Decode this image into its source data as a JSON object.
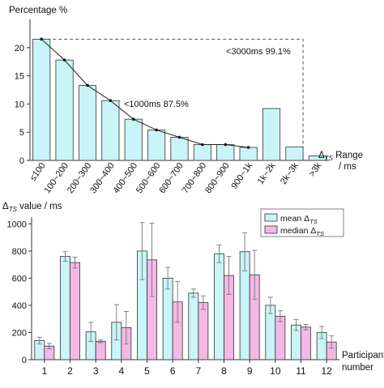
{
  "chart_data": [
    {
      "type": "bar",
      "ylabel": "Percentage %",
      "xlabel": "ΔTS Range / ms",
      "xlabel_parts": {
        "symbol": "Δ",
        "subscript": "TS",
        "rest": " Range",
        "unit": "/ ms"
      },
      "ylim": [
        0,
        25
      ],
      "yticks": [
        0,
        5,
        10,
        15,
        20
      ],
      "grid": false,
      "categories": [
        "≤100",
        "100~200",
        "200~300",
        "300~400",
        "400~500",
        "500~600",
        "600~700",
        "700~800",
        "800~900",
        "900~1k",
        "1k~2k",
        "2k~3k",
        ">3k"
      ],
      "values": [
        21.5,
        17.8,
        13.3,
        10.6,
        7.3,
        5.4,
        4.1,
        2.8,
        2.8,
        2.3,
        9.2,
        2.4,
        0.8
      ],
      "cumulative_line_categories": 10,
      "bar_color": "#c9f4f8",
      "annotations": [
        {
          "text": "<3000ms  99.1%"
        },
        {
          "text": "<1000ms  87.5%"
        }
      ]
    },
    {
      "type": "bar",
      "ylabel": "ΔTS value / ms",
      "ylabel_parts": {
        "symbol": "Δ",
        "subscript": "TS",
        "rest": " value / ms"
      },
      "xlabel": "Participant number",
      "xlabel_lines": [
        "Participant",
        "number"
      ],
      "ylim": [
        0,
        1050
      ],
      "yticks": [
        0,
        200,
        400,
        600,
        800,
        1000
      ],
      "grid": false,
      "legend": "top-right",
      "categories": [
        "1",
        "2",
        "3",
        "4",
        "5",
        "6",
        "7",
        "8",
        "9",
        "10",
        "11",
        "12"
      ],
      "series": [
        {
          "name": "mean ΔTS",
          "name_parts": {
            "prefix": "mean Δ",
            "subscript": "TS"
          },
          "color": "#c9f4f8",
          "values": [
            140,
            760,
            205,
            275,
            800,
            600,
            490,
            780,
            795,
            400,
            255,
            200
          ],
          "error": [
            25,
            35,
            70,
            130,
            210,
            80,
            30,
            65,
            140,
            60,
            40,
            45
          ]
        },
        {
          "name": "median ΔTS",
          "name_parts": {
            "prefix": "median Δ",
            "subscript": "TS"
          },
          "color": "#f5b8e4",
          "values": [
            100,
            715,
            135,
            235,
            735,
            425,
            420,
            620,
            625,
            320,
            240,
            130
          ],
          "error": [
            20,
            40,
            10,
            120,
            270,
            150,
            50,
            140,
            180,
            40,
            20,
            45
          ]
        }
      ]
    }
  ]
}
